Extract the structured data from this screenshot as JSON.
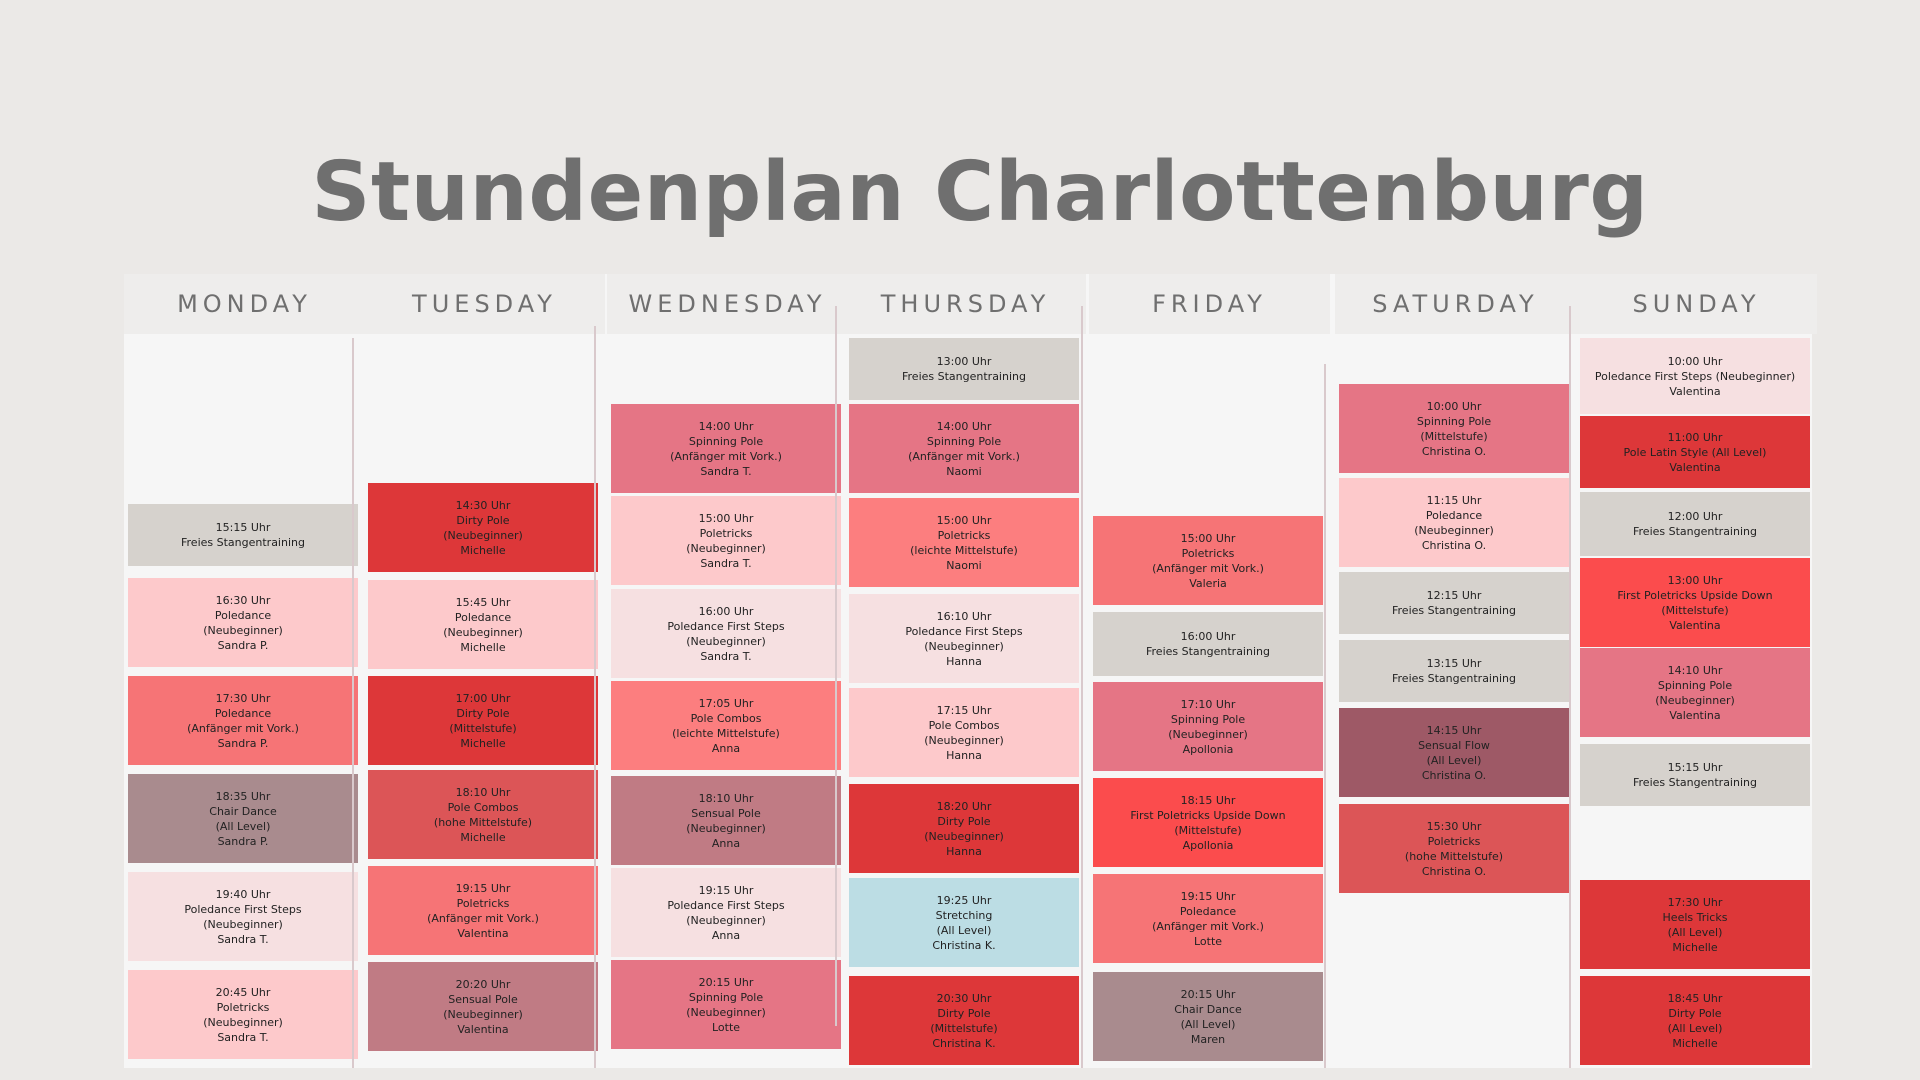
{
  "title": "Stundenplan Charlottenburg",
  "colors": {
    "background": "#ebe9e7",
    "board": "#f6f6f6",
    "title": "#6f6f6f"
  },
  "days": [
    {
      "name": "MONDAY",
      "classes": [
        {
          "lines": [
            "15:15 Uhr",
            "Freies Stangentraining"
          ],
          "color": "#d6d2cd"
        },
        {
          "lines": [
            "16:30 Uhr",
            "Poledance",
            "(Neubeginner)",
            "Sandra P."
          ],
          "color": "#fdc9cb"
        },
        {
          "lines": [
            "17:30 Uhr",
            "Poledance",
            "(Anfänger mit Vork.)",
            "Sandra P."
          ],
          "color": "#f67476"
        },
        {
          "lines": [
            "18:35 Uhr",
            "Chair Dance",
            "(All Level)",
            "Sandra P."
          ],
          "color": "#a98b8e"
        },
        {
          "lines": [
            "19:40 Uhr",
            "Poledance First Steps",
            "(Neubeginner)",
            "Sandra T."
          ],
          "color": "#f6e0e1"
        },
        {
          "lines": [
            "20:45 Uhr",
            "Poletricks",
            "(Neubeginner)",
            "Sandra T."
          ],
          "color": "#fdc9cb"
        }
      ]
    },
    {
      "name": "TUESDAY",
      "classes": [
        {
          "lines": [
            "14:30 Uhr",
            "Dirty Pole",
            "(Neubeginner)",
            "Michelle"
          ],
          "color": "#dd3739"
        },
        {
          "lines": [
            "15:45 Uhr",
            "Poledance",
            "(Neubeginner)",
            "Michelle"
          ],
          "color": "#fdc9cb"
        },
        {
          "lines": [
            "17:00 Uhr",
            "Dirty Pole",
            "(Mittelstufe)",
            "Michelle"
          ],
          "color": "#dd3739"
        },
        {
          "lines": [
            "18:10 Uhr",
            "Pole Combos",
            "(hohe Mittelstufe)",
            "Michelle"
          ],
          "color": "#dc5557"
        },
        {
          "lines": [
            "19:15 Uhr",
            "Poletricks",
            "(Anfänger mit Vork.)",
            "Valentina"
          ],
          "color": "#f67476"
        },
        {
          "lines": [
            "20:20 Uhr",
            "Sensual Pole",
            "(Neubeginner)",
            "Valentina"
          ],
          "color": "#c07b84"
        }
      ]
    },
    {
      "name": "WEDNESDAY",
      "classes": [
        {
          "lines": [
            "14:00 Uhr",
            "Spinning Pole",
            "(Anfänger mit Vork.)",
            "Sandra T."
          ],
          "color": "#e57585"
        },
        {
          "lines": [
            "15:00 Uhr",
            "Poletricks",
            "(Neubeginner)",
            "Sandra T."
          ],
          "color": "#fdc9cb"
        },
        {
          "lines": [
            "16:00 Uhr",
            "Poledance First Steps",
            "(Neubeginner)",
            "Sandra T."
          ],
          "color": "#f6e0e1"
        },
        {
          "lines": [
            "17:05 Uhr",
            "Pole Combos",
            "(leichte Mittelstufe)",
            "Anna"
          ],
          "color": "#fc7e7f"
        },
        {
          "lines": [
            "18:10 Uhr",
            "Sensual Pole",
            "(Neubeginner)",
            "Anna"
          ],
          "color": "#c07b84"
        },
        {
          "lines": [
            "19:15 Uhr",
            "Poledance First Steps",
            "(Neubeginner)",
            "Anna"
          ],
          "color": "#f6e0e1"
        },
        {
          "lines": [
            "20:15 Uhr",
            "Spinning Pole",
            "(Neubeginner)",
            "Lotte"
          ],
          "color": "#e57585"
        }
      ]
    },
    {
      "name": "THURSDAY",
      "classes": [
        {
          "lines": [
            "13:00 Uhr",
            "Freies Stangentraining"
          ],
          "color": "#d6d2cd"
        },
        {
          "lines": [
            "14:00 Uhr",
            "Spinning Pole",
            "(Anfänger mit Vork.)",
            "Naomi"
          ],
          "color": "#e57585"
        },
        {
          "lines": [
            "15:00 Uhr",
            "Poletricks",
            "(leichte Mittelstufe)",
            "Naomi"
          ],
          "color": "#fc7e7f"
        },
        {
          "lines": [
            "16:10 Uhr",
            "Poledance First Steps",
            "(Neubeginner)",
            "Hanna"
          ],
          "color": "#f6e0e1"
        },
        {
          "lines": [
            "17:15 Uhr",
            "Pole Combos",
            "(Neubeginner)",
            "Hanna"
          ],
          "color": "#fdc9cb"
        },
        {
          "lines": [
            "18:20 Uhr",
            "Dirty Pole",
            "(Neubeginner)",
            "Hanna"
          ],
          "color": "#dd3739"
        },
        {
          "lines": [
            "19:25 Uhr",
            "Stretching",
            "(All Level)",
            "Christina K."
          ],
          "color": "#bcdde4"
        },
        {
          "lines": [
            "20:30 Uhr",
            "Dirty Pole",
            "(Mittelstufe)",
            "Christina K."
          ],
          "color": "#dd3739"
        }
      ]
    },
    {
      "name": "FRIDAY",
      "classes": [
        {
          "lines": [
            "15:00 Uhr",
            "Poletricks",
            "(Anfänger mit Vork.)",
            "Valeria"
          ],
          "color": "#f67476"
        },
        {
          "lines": [
            "16:00 Uhr",
            "Freies Stangentraining"
          ],
          "color": "#d6d2cd"
        },
        {
          "lines": [
            "17:10 Uhr",
            "Spinning Pole",
            "(Neubeginner)",
            "Apollonia"
          ],
          "color": "#e57585"
        },
        {
          "lines": [
            "18:15 Uhr",
            "First Poletricks Upside Down",
            "(Mittelstufe)",
            "Apollonia"
          ],
          "color": "#fb4c4d"
        },
        {
          "lines": [
            "19:15 Uhr",
            "Poledance",
            "(Anfänger mit Vork.)",
            "Lotte"
          ],
          "color": "#f67476"
        },
        {
          "lines": [
            "20:15 Uhr",
            "Chair Dance",
            "(All Level)",
            "Maren"
          ],
          "color": "#a98b8e"
        }
      ]
    },
    {
      "name": "SATURDAY",
      "classes": [
        {
          "lines": [
            "10:00 Uhr",
            "Spinning Pole",
            "(Mittelstufe)",
            "Christina O."
          ],
          "color": "#e57585"
        },
        {
          "lines": [
            "11:15 Uhr",
            "Poledance",
            "(Neubeginner)",
            "Christina O."
          ],
          "color": "#fdc9cb"
        },
        {
          "lines": [
            "12:15 Uhr",
            "Freies Stangentraining"
          ],
          "color": "#d6d2cd"
        },
        {
          "lines": [
            "13:15 Uhr",
            "Freies Stangentraining"
          ],
          "color": "#d6d2cd"
        },
        {
          "lines": [
            "14:15 Uhr",
            "Sensual Flow",
            "(All Level)",
            "Christina O."
          ],
          "color": "#9e5966"
        },
        {
          "lines": [
            "15:30 Uhr",
            "Poletricks",
            "(hohe Mittelstufe)",
            "Christina O."
          ],
          "color": "#dc5557"
        }
      ]
    },
    {
      "name": "SUNDAY",
      "classes": [
        {
          "lines": [
            "10:00 Uhr",
            "Poledance First Steps (Neubeginner)",
            "Valentina"
          ],
          "color": "#f6e0e1"
        },
        {
          "lines": [
            "11:00 Uhr",
            "Pole Latin Style (All Level)",
            "Valentina"
          ],
          "color": "#dd3739"
        },
        {
          "lines": [
            "12:00 Uhr",
            "Freies Stangentraining"
          ],
          "color": "#d6d2cd"
        },
        {
          "lines": [
            "13:00 Uhr",
            "First Poletricks Upside Down",
            "(Mittelstufe)",
            "Valentina"
          ],
          "color": "#fb4c4d"
        },
        {
          "lines": [
            "14:10 Uhr",
            "Spinning Pole",
            "(Neubeginner)",
            "Valentina"
          ],
          "color": "#e57585"
        },
        {
          "lines": [
            "15:15 Uhr",
            "Freies Stangentraining"
          ],
          "color": "#d6d2cd"
        },
        {
          "lines": [
            "17:30 Uhr",
            "Heels Tricks",
            "(All Level)",
            "Michelle"
          ],
          "color": "#dd3739"
        },
        {
          "lines": [
            "18:45 Uhr",
            "Dirty Pole",
            "(All Level)",
            "Michelle"
          ],
          "color": "#dd3739"
        }
      ]
    }
  ]
}
